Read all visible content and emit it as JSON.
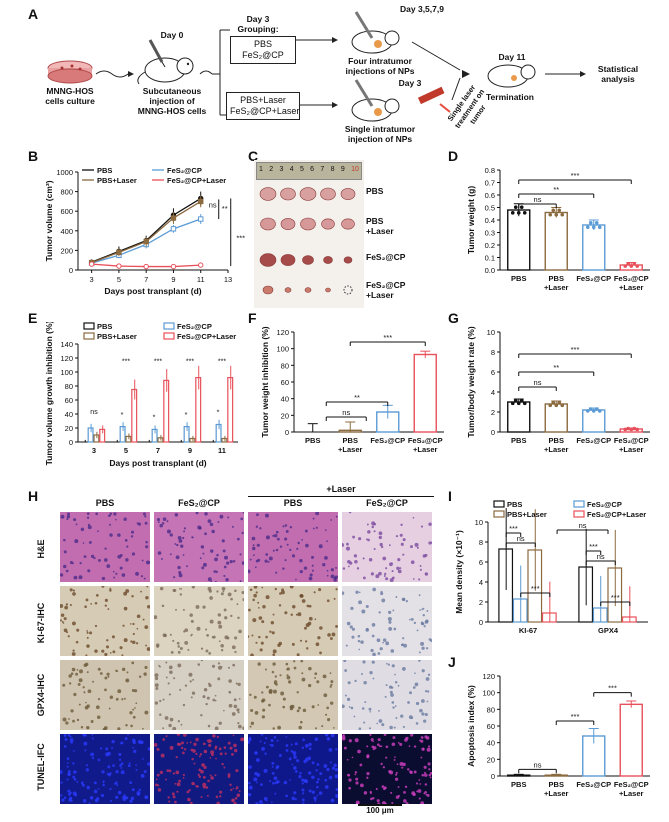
{
  "panels": {
    "A": "A",
    "B": "B",
    "C": "C",
    "D": "D",
    "E": "E",
    "F": "F",
    "G": "G",
    "H": "H",
    "I": "I",
    "J": "J"
  },
  "schematic": {
    "culture_label": "MNNG-HOS\ncells culture",
    "day0": "Day 0",
    "injection_label": "Subcutaneous\ninjection of\nMNNG-HOS cells",
    "grouping_title": "Day 3\nGrouping:",
    "group1": [
      "PBS",
      "FeS₂@CP"
    ],
    "group2": [
      "PBS+Laser",
      "FeS₂@CP+Laser"
    ],
    "day3579": "Day 3,5,7,9",
    "four_inj": "Four intratumor\ninjections of NPs",
    "day3": "Day 3",
    "single_inj": "Single intratumor\ninjection of NPs",
    "laser_label": "Single laser\ntreatment on\ntumor",
    "day11": "Day 11",
    "termination": "Termination",
    "analysis": "Statistical\nanalysis"
  },
  "photo_C": {
    "ruler_numbers": [
      "1",
      "2",
      "3",
      "4",
      "5",
      "6",
      "7",
      "8",
      "9",
      "10"
    ],
    "rows": [
      "PBS",
      "PBS\n+Laser",
      "FeS₂@CP",
      "FeS₂@CP\n+Laser"
    ]
  },
  "histology_H": {
    "col_headers": [
      "PBS",
      "FeS₂@CP",
      "PBS",
      "FeS₂@CP"
    ],
    "laser_header": "+Laser",
    "row_labels": [
      "H&E",
      "KI-67-IHC",
      "GPX4-IHC",
      "TUNEL-IFC"
    ],
    "scale_bar": "100 μm"
  },
  "colors": {
    "pbs": "#111111",
    "fes2cp": "#5b9bd5",
    "pbs_laser": "#8c6a3f",
    "fes2cp_laser": "#e8505b"
  },
  "chart_data": [
    {
      "id": "B",
      "type": "line",
      "xlabel": "Days post transplant (d)",
      "ylabel": "Tumor volume (cm³)",
      "x": [
        3,
        5,
        7,
        9,
        11
      ],
      "xticks": [
        3,
        5,
        7,
        9,
        11,
        13
      ],
      "ylim": [
        0,
        1000
      ],
      "yticks": [
        0,
        200,
        400,
        600,
        800,
        1000
      ],
      "series": [
        {
          "name": "PBS",
          "values": [
            80,
            190,
            300,
            560,
            730
          ],
          "err": [
            10,
            50,
            50,
            70,
            70
          ]
        },
        {
          "name": "FeS₂@CP",
          "values": [
            70,
            150,
            260,
            420,
            520
          ],
          "err": [
            10,
            30,
            40,
            40,
            50
          ]
        },
        {
          "name": "PBS+Laser",
          "values": [
            75,
            180,
            290,
            530,
            700
          ],
          "err": [
            10,
            40,
            50,
            60,
            60
          ]
        },
        {
          "name": "FeS₂@CP+Laser",
          "values": [
            60,
            40,
            35,
            35,
            50
          ],
          "err": [
            5,
            5,
            5,
            5,
            5
          ]
        }
      ],
      "annotations": [
        "ns",
        "**",
        "***"
      ]
    },
    {
      "id": "D",
      "type": "bar",
      "ylabel": "Tumor weight (g)",
      "ylim": [
        0,
        0.8
      ],
      "yticks": [
        "0.0",
        "0.1",
        "0.2",
        "0.3",
        "0.4",
        "0.5",
        "0.6",
        "0.7",
        "0.8"
      ],
      "categories": [
        "PBS",
        "PBS\n+Laser",
        "FeS₂@CP",
        "FeS₂@CP\n+Laser"
      ],
      "values": [
        0.48,
        0.46,
        0.36,
        0.04
      ],
      "err": [
        0.05,
        0.04,
        0.04,
        0.02
      ],
      "annotations": [
        "ns",
        "**",
        "***"
      ]
    },
    {
      "id": "E",
      "type": "bar",
      "xlabel": "Days post transplant (d)",
      "ylabel": "Tumor volume growth inhibition (%)",
      "categories": [
        "3",
        "5",
        "7",
        "9",
        "11"
      ],
      "ylim": [
        0,
        140
      ],
      "yticks": [
        0,
        20,
        40,
        60,
        80,
        100,
        120,
        140
      ],
      "series": [
        {
          "name": "PBS",
          "values": [
            0,
            0,
            0,
            0,
            0
          ]
        },
        {
          "name": "FeS₂@CP",
          "values": [
            20,
            22,
            18,
            22,
            25
          ]
        },
        {
          "name": "PBS+Laser",
          "values": [
            10,
            8,
            6,
            5,
            5
          ]
        },
        {
          "name": "FeS₂@CP+Laser",
          "values": [
            18,
            75,
            88,
            92,
            92
          ]
        }
      ],
      "annotations": [
        "ns",
        "*",
        "***"
      ]
    },
    {
      "id": "F",
      "type": "bar",
      "ylabel": "Tumor weight inhibition (%)",
      "ylim": [
        0,
        120
      ],
      "yticks": [
        0,
        20,
        40,
        60,
        80,
        100,
        120
      ],
      "categories": [
        "PBS",
        "PBS\n+Laser",
        "FeS₂@CP",
        "FeS₂@CP\n+Laser"
      ],
      "values": [
        0,
        2,
        24,
        93
      ],
      "err": [
        10,
        10,
        8,
        4
      ],
      "annotations": [
        "ns",
        "**",
        "***"
      ]
    },
    {
      "id": "G",
      "type": "bar",
      "ylabel": "Tumor/body weight rate (%)",
      "ylim": [
        0,
        10
      ],
      "yticks": [
        0,
        2,
        4,
        6,
        8,
        10
      ],
      "categories": [
        "PBS",
        "PBS\n+Laser",
        "FeS₂@CP",
        "FeS₂@CP\n+Laser"
      ],
      "values": [
        3.0,
        2.8,
        2.2,
        0.3
      ],
      "err": [
        0.3,
        0.3,
        0.2,
        0.1
      ],
      "annotations": [
        "ns",
        "**",
        "***"
      ]
    },
    {
      "id": "I",
      "type": "bar",
      "ylabel": "Mean density (×10⁻¹)",
      "ylim": [
        0,
        10
      ],
      "yticks": [
        0,
        2,
        4,
        6,
        8,
        10
      ],
      "categories": [
        "KI-67",
        "GPX4"
      ],
      "series": [
        {
          "name": "PBS",
          "values": [
            7.3,
            5.5
          ]
        },
        {
          "name": "FeS₂@CP",
          "values": [
            2.3,
            1.4
          ]
        },
        {
          "name": "PBS+Laser",
          "values": [
            7.2,
            5.4
          ]
        },
        {
          "name": "FeS₂@CP+Laser",
          "values": [
            0.9,
            0.5
          ]
        }
      ],
      "annotations": [
        "ns",
        "***"
      ]
    },
    {
      "id": "J",
      "type": "bar",
      "ylabel": "Apoptosis index (%)",
      "ylim": [
        0,
        120
      ],
      "yticks": [
        0,
        20,
        40,
        60,
        80,
        100,
        120
      ],
      "categories": [
        "PBS",
        "PBS\n+Laser",
        "FeS₂@CP",
        "FeS₂@CP\n+Laser"
      ],
      "values": [
        1,
        1,
        48,
        86
      ],
      "err": [
        1,
        1,
        9,
        4
      ],
      "annotations": [
        "ns",
        "***"
      ]
    }
  ]
}
